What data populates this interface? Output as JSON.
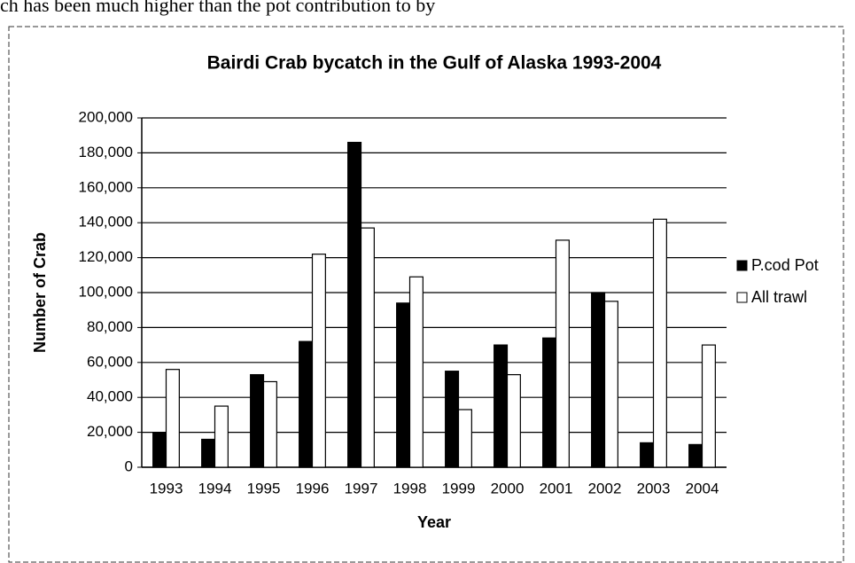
{
  "page_text": "ch has been much higher than the pot contribution to by",
  "chart_data": {
    "type": "bar",
    "title": "Bairdi Crab bycatch in the Gulf of Alaska 1993-2004",
    "x_label": "Year",
    "y_label": "Number of Crab",
    "categories": [
      "1993",
      "1994",
      "1995",
      "1996",
      "1997",
      "1998",
      "1999",
      "2000",
      "2001",
      "2002",
      "2003",
      "2004"
    ],
    "series": [
      {
        "name": "P.cod Pot",
        "color": "#000000",
        "values": [
          20000,
          16000,
          53000,
          72000,
          186000,
          94000,
          55000,
          70000,
          74000,
          100000,
          14000,
          13000
        ]
      },
      {
        "name": "All trawl",
        "color": "#ffffff",
        "values": [
          56000,
          35000,
          49000,
          122000,
          137000,
          109000,
          33000,
          53000,
          130000,
          95000,
          142000,
          70000
        ]
      }
    ],
    "ylim": [
      0,
      200000
    ],
    "yticks": [
      0,
      {
        "value": 20000,
        "label": "20,000"
      },
      {
        "value": 40000,
        "label": "40,000"
      },
      {
        "value": 60000,
        "label": "60,000"
      },
      {
        "value": 80000,
        "label": "80,000"
      },
      {
        "value": 100000,
        "label": "100,000"
      },
      {
        "value": 120000,
        "label": "120,000"
      },
      {
        "value": 140000,
        "label": "140,000"
      },
      {
        "value": 160000,
        "label": "160,000"
      },
      {
        "value": 180000,
        "label": "180,000"
      },
      {
        "value": 200000,
        "label": "200,000"
      }
    ],
    "grid": true,
    "legend": "right"
  }
}
